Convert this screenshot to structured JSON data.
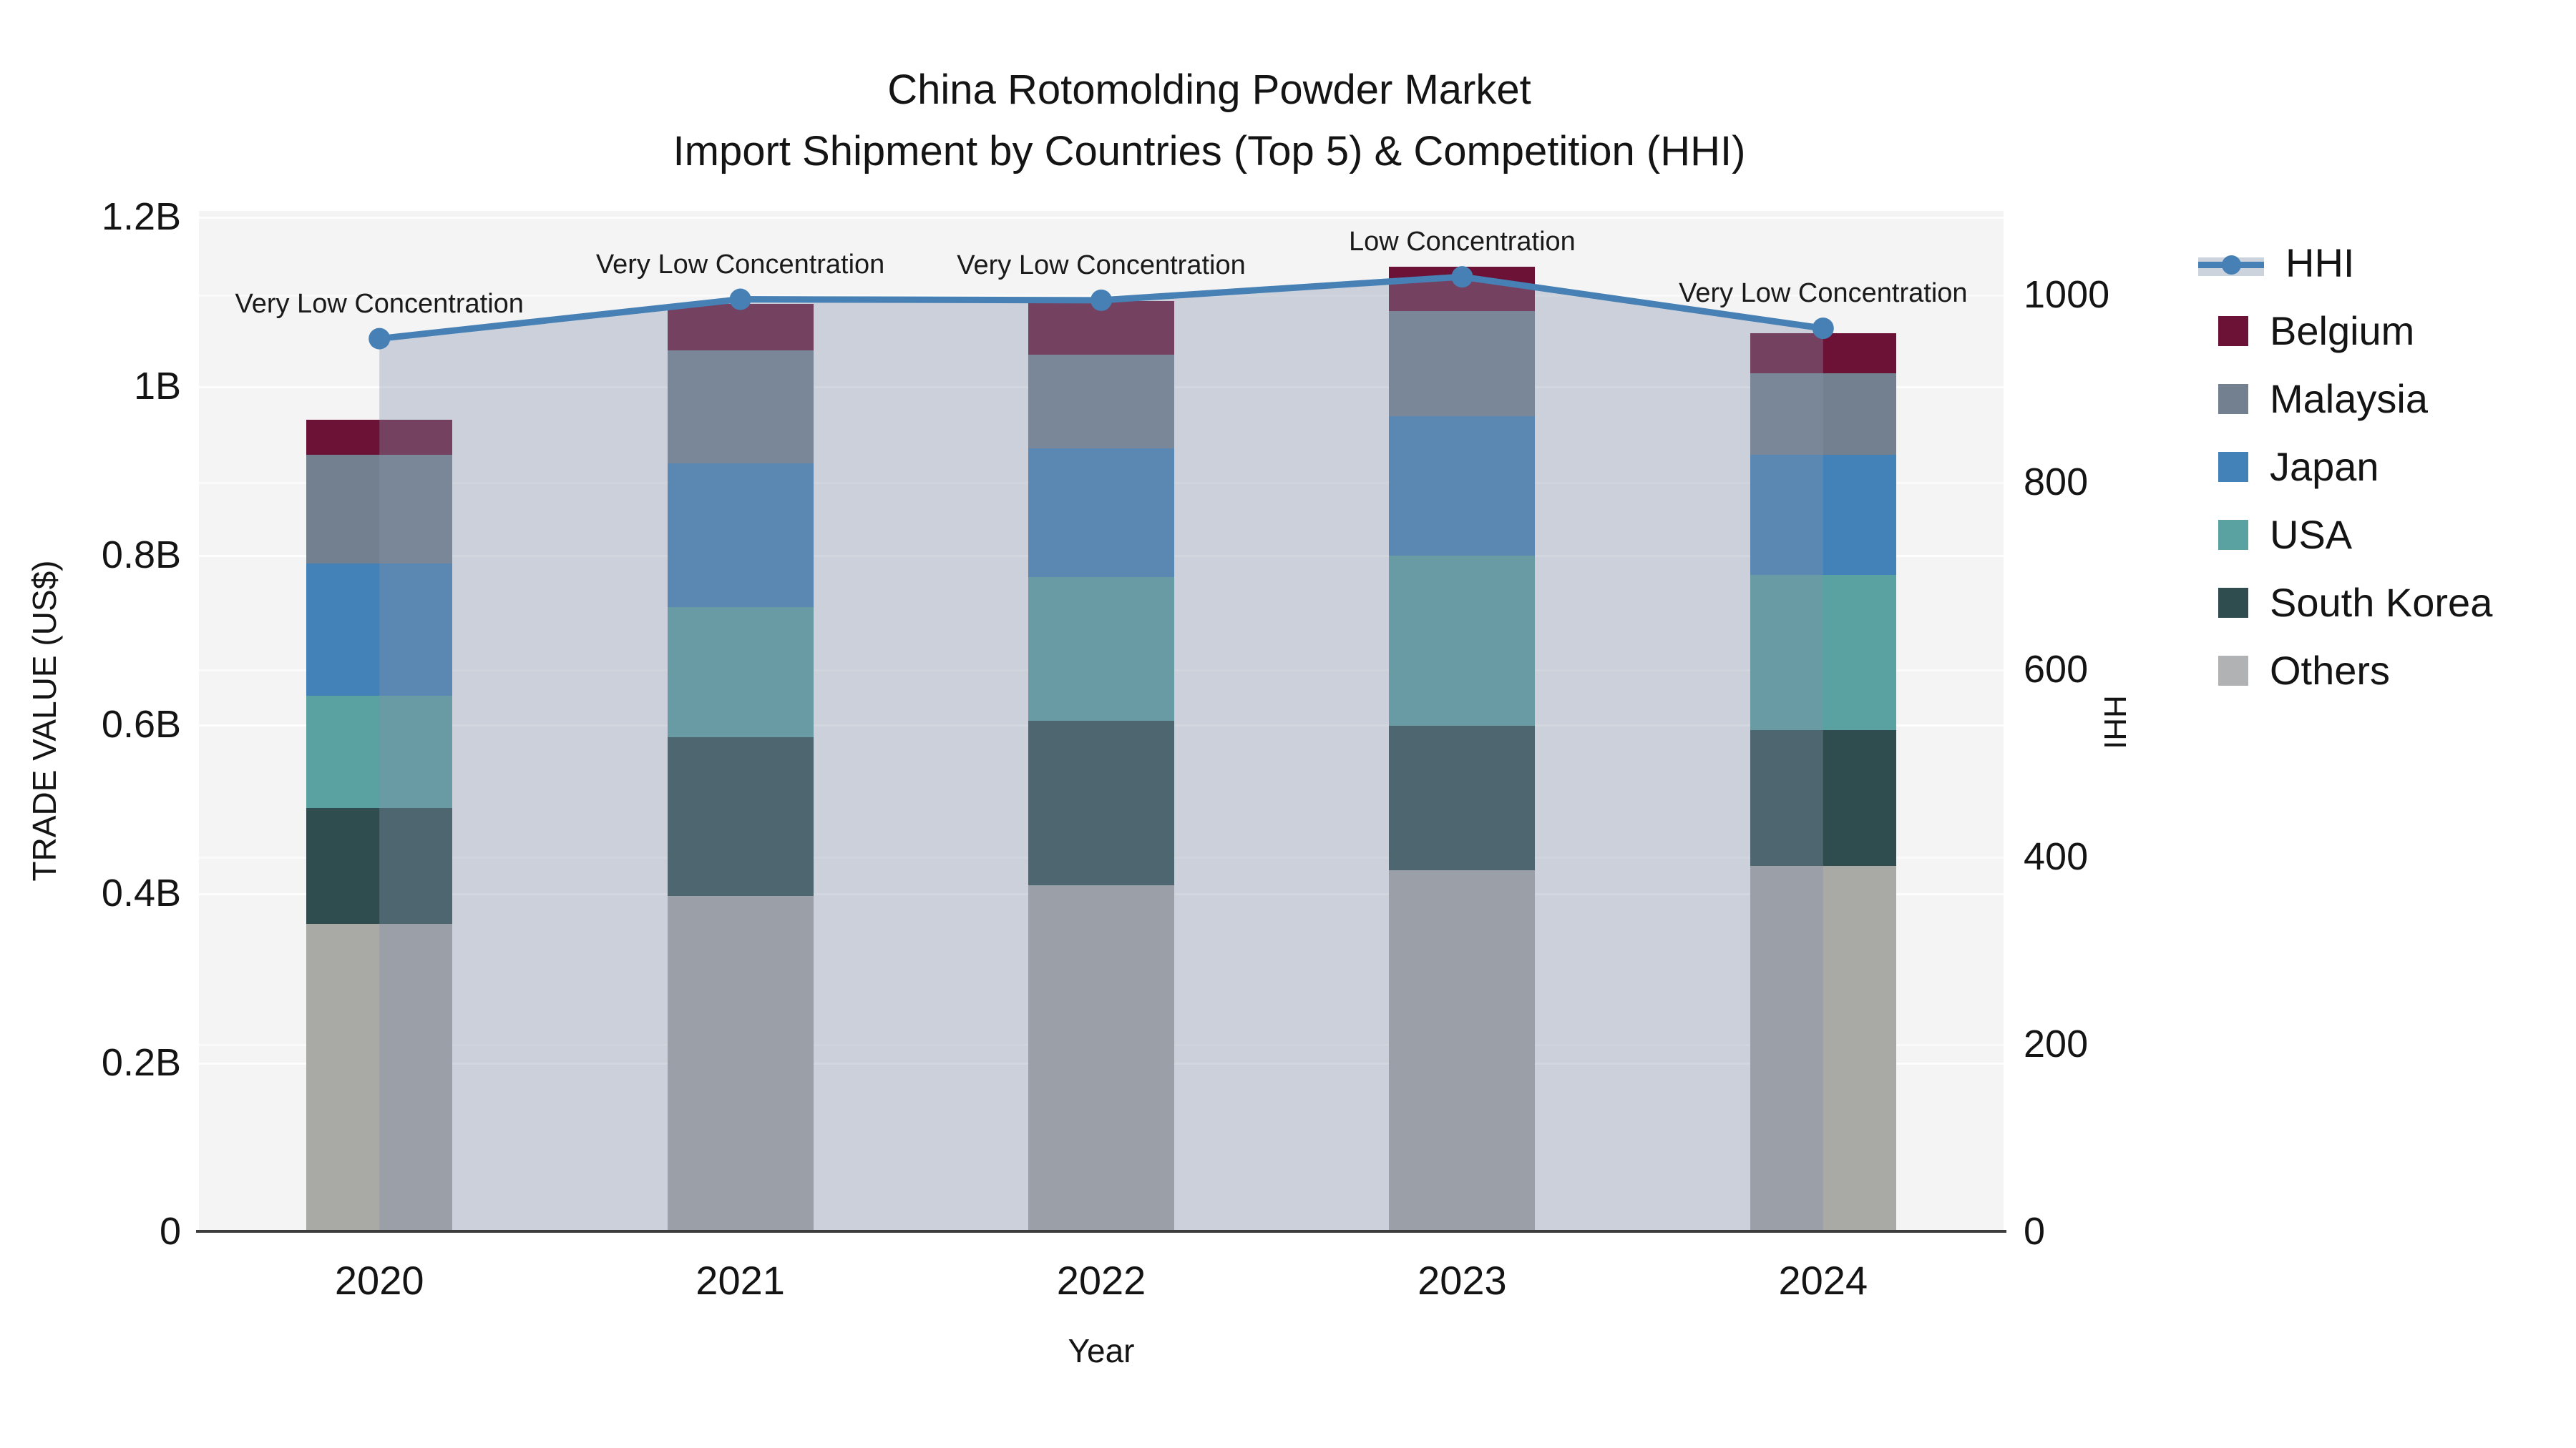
{
  "title": "China Rotomolding Powder Market",
  "subtitle": "Import Shipment by Countries (Top 5) & Competition (HHI)",
  "chart_data": {
    "type": "bar",
    "subtype": "stacked-bars-with-line",
    "title": "China Rotomolding Powder Market",
    "subtitle": "Import Shipment by Countries (Top 5) & Competition (HHI)",
    "xlabel": "Year",
    "ylabel_left": "TRADE VALUE (US$)",
    "ylabel_right": "HHI",
    "categories": [
      "2020",
      "2021",
      "2022",
      "2023",
      "2024"
    ],
    "value_unit": "millions of US$",
    "series": [
      {
        "name": "Others",
        "color": "#a9a9a6",
        "values": [
          364,
          397,
          409,
          427,
          432
        ]
      },
      {
        "name": "South Korea",
        "color": "#2f4d4f",
        "values": [
          137,
          187,
          195,
          171,
          161
        ]
      },
      {
        "name": "USA",
        "color": "#5aa1a1",
        "values": [
          132,
          154,
          170,
          201,
          183
        ]
      },
      {
        "name": "Japan",
        "color": "#4282b8",
        "values": [
          157,
          170,
          152,
          165,
          142
        ]
      },
      {
        "name": "Malaysia",
        "color": "#72808f",
        "values": [
          128,
          134,
          111,
          124,
          97
        ]
      },
      {
        "name": "Belgium",
        "color": "#6b1236",
        "values": [
          42,
          55,
          63,
          53,
          47
        ]
      }
    ],
    "line_series": {
      "name": "HHI",
      "axis": "right",
      "color": "#4680b4",
      "area_fill": "rgba(133,147,172,0.37)",
      "values": [
        953,
        995,
        994,
        1019,
        964
      ]
    },
    "annotations": [
      {
        "category": "2020",
        "text": "Very Low Concentration"
      },
      {
        "category": "2021",
        "text": "Very Low Concentration"
      },
      {
        "category": "2022",
        "text": "Very Low Concentration"
      },
      {
        "category": "2023",
        "text": "Low Concentration"
      },
      {
        "category": "2024",
        "text": "Very Low Concentration"
      }
    ],
    "left_axis": {
      "tick_labels": [
        "0",
        "0.2B",
        "0.4B",
        "0.6B",
        "0.8B",
        "1B",
        "1.2B"
      ],
      "tick_values": [
        0,
        200,
        400,
        600,
        800,
        1000,
        1200
      ],
      "range_millions": [
        0,
        1200
      ]
    },
    "right_axis": {
      "tick_labels": [
        "0",
        "200",
        "400",
        "600",
        "800",
        "1000"
      ],
      "tick_values": [
        0,
        200,
        400,
        600,
        800,
        1000
      ],
      "range": [
        0,
        1095
      ]
    },
    "legend_position": "right",
    "grid": true,
    "plot_background": "#f4f4f5"
  },
  "legend": {
    "items": [
      {
        "label": "HHI",
        "type": "line",
        "color": "#4680b4",
        "band_color": "#ccd3dc"
      },
      {
        "label": "Belgium",
        "type": "square",
        "color": "#6b1236"
      },
      {
        "label": "Malaysia",
        "type": "square",
        "color": "#72808f"
      },
      {
        "label": "Japan",
        "type": "square",
        "color": "#4282b8"
      },
      {
        "label": "USA",
        "type": "square",
        "color": "#5aa1a1"
      },
      {
        "label": "South Korea",
        "type": "square",
        "color": "#2f4d4f"
      },
      {
        "label": "Others",
        "type": "square",
        "color": "#b0b2b4"
      }
    ]
  }
}
